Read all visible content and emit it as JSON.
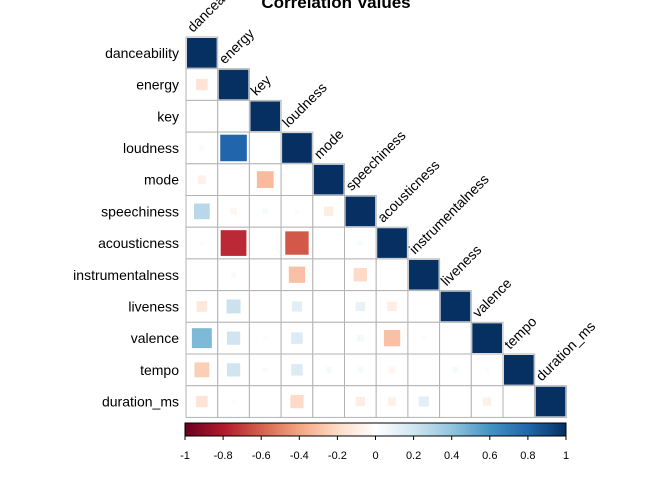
{
  "chart_data": {
    "type": "heatmap",
    "subtype": "lower-triangle correlation matrix",
    "title": "Correlation Values",
    "variables": [
      "danceability",
      "energy",
      "key",
      "loudness",
      "mode",
      "speechiness",
      "acousticness",
      "instrumentalness",
      "liveness",
      "valence",
      "tempo",
      "duration_ms"
    ],
    "lower_triangle": [
      [
        1.0
      ],
      [
        -0.15,
        1.0
      ],
      [
        0.01,
        0.0,
        1.0
      ],
      [
        0.03,
        0.8,
        0.0,
        1.0
      ],
      [
        -0.08,
        0.0,
        -0.32,
        0.01,
        1.0
      ],
      [
        0.28,
        -0.05,
        0.04,
        0.02,
        -0.1,
        1.0
      ],
      [
        -0.02,
        -0.75,
        0.0,
        -0.62,
        0.0,
        0.03,
        1.0
      ],
      [
        0.0,
        0.03,
        0.0,
        -0.3,
        0.0,
        -0.2,
        0.0,
        1.0
      ],
      [
        -0.13,
        0.22,
        0.0,
        0.12,
        0.0,
        0.1,
        -0.1,
        0.0,
        1.0
      ],
      [
        0.45,
        0.2,
        0.02,
        0.15,
        0.0,
        0.05,
        -0.3,
        0.02,
        0.0,
        1.0
      ],
      [
        -0.25,
        0.2,
        0.03,
        0.15,
        0.04,
        0.04,
        -0.05,
        0.0,
        0.04,
        0.02,
        1.0
      ],
      [
        -0.15,
        0.02,
        0.01,
        -0.2,
        0.0,
        -0.1,
        -0.08,
        0.12,
        0.0,
        -0.08,
        0.0,
        1.0
      ]
    ],
    "colorbar": {
      "range": [
        -1,
        1
      ],
      "ticks": [
        "-1",
        "-0.8",
        "-0.6",
        "-0.4",
        "-0.2",
        "0",
        "0.2",
        "0.4",
        "0.6",
        "0.8",
        "1"
      ]
    },
    "colors": {
      "negative": "#67001F",
      "neutral": "#FFFFFF",
      "positive": "#053061",
      "grid": "#b3b3b3"
    }
  }
}
